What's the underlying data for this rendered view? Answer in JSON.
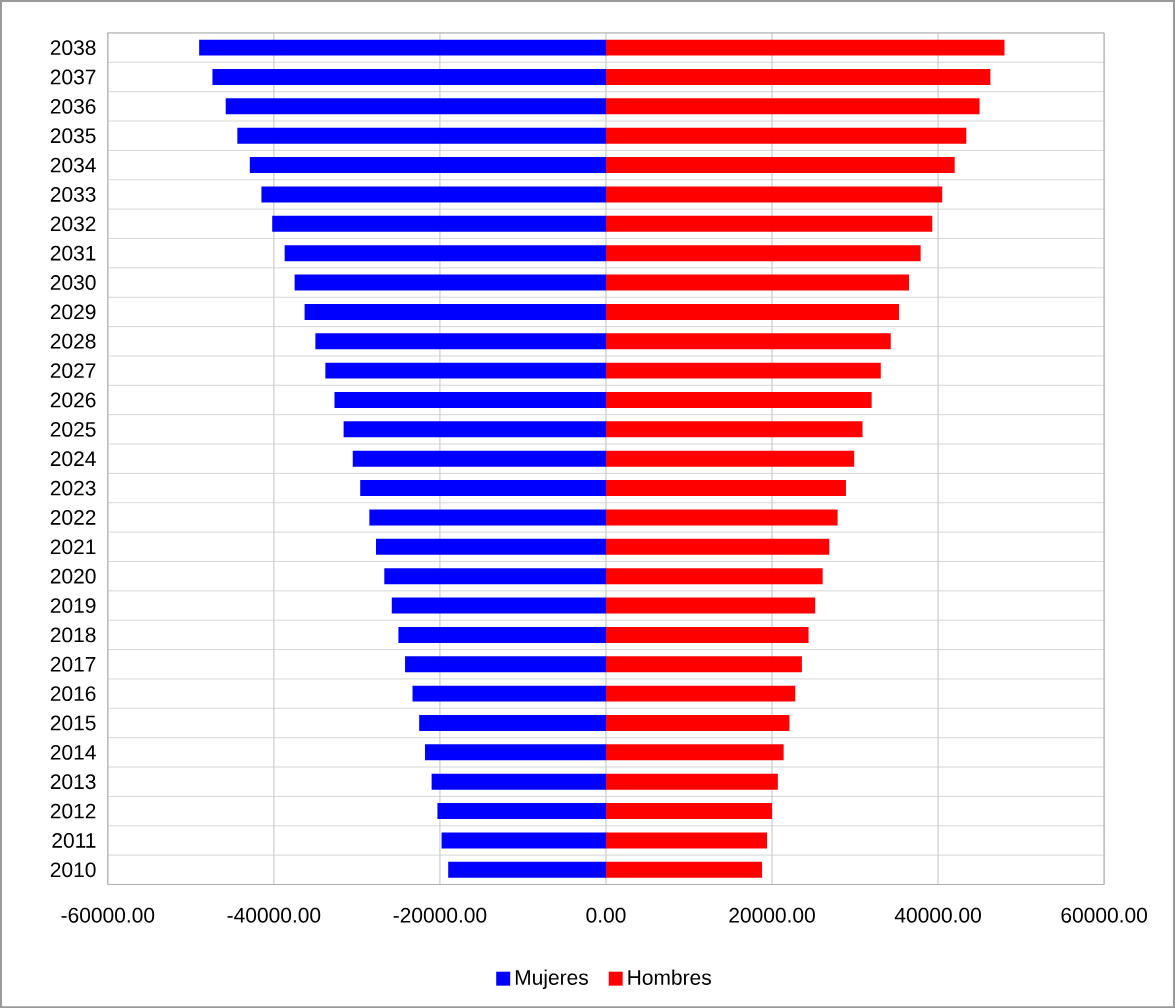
{
  "chart_data": {
    "type": "bar",
    "orientation": "horizontal",
    "categories": [
      "2038",
      "2037",
      "2036",
      "2035",
      "2034",
      "2033",
      "2032",
      "2031",
      "2030",
      "2029",
      "2028",
      "2027",
      "2026",
      "2025",
      "2024",
      "2023",
      "2022",
      "2021",
      "2020",
      "2019",
      "2018",
      "2017",
      "2016",
      "2015",
      "2014",
      "2013",
      "2012",
      "2011",
      "2010"
    ],
    "series": [
      {
        "name": "Mujeres",
        "color": "#0000ff",
        "values": [
          -49000,
          -47400,
          -45800,
          -44400,
          -42900,
          -41500,
          -40200,
          -38700,
          -37500,
          -36300,
          -35000,
          -33800,
          -32700,
          -31600,
          -30500,
          -29600,
          -28500,
          -27700,
          -26700,
          -25800,
          -25000,
          -24200,
          -23300,
          -22500,
          -21800,
          -21000,
          -20300,
          -19800,
          -19000
        ]
      },
      {
        "name": "Hombres",
        "color": "#ff0000",
        "values": [
          48000,
          46300,
          45000,
          43400,
          42000,
          40500,
          39300,
          37900,
          36500,
          35300,
          34300,
          33100,
          32000,
          30900,
          29900,
          28900,
          27900,
          26900,
          26100,
          25200,
          24400,
          23600,
          22800,
          22100,
          21400,
          20700,
          20000,
          19400,
          18800
        ]
      }
    ],
    "xlim": [
      -60000,
      60000
    ],
    "xticks": [
      {
        "value": -60000,
        "label": "-60000.00"
      },
      {
        "value": -40000,
        "label": "-40000.00"
      },
      {
        "value": -20000,
        "label": "-20000.00"
      },
      {
        "value": 0,
        "label": "0.00"
      },
      {
        "value": 20000,
        "label": "20000.00"
      },
      {
        "value": 40000,
        "label": "40000.00"
      },
      {
        "value": 60000,
        "label": "60000.00"
      }
    ],
    "grid": true,
    "legend": "bottom",
    "stacked": true
  }
}
